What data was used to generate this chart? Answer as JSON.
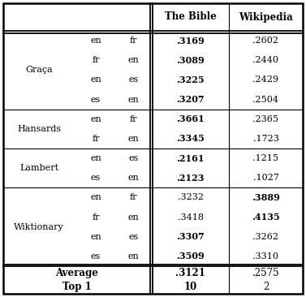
{
  "rows": [
    {
      "group": "Graça",
      "lang1": "en",
      "lang2": "fr",
      "bible": ".3169",
      "wiki": ".2602",
      "bible_bold": true,
      "wiki_bold": false
    },
    {
      "group": "",
      "lang1": "fr",
      "lang2": "en",
      "bible": ".3089",
      "wiki": ".2440",
      "bible_bold": true,
      "wiki_bold": false
    },
    {
      "group": "",
      "lang1": "en",
      "lang2": "es",
      "bible": ".3225",
      "wiki": ".2429",
      "bible_bold": true,
      "wiki_bold": false
    },
    {
      "group": "",
      "lang1": "es",
      "lang2": "en",
      "bible": ".3207",
      "wiki": ".2504",
      "bible_bold": true,
      "wiki_bold": false
    },
    {
      "group": "Hansards",
      "lang1": "en",
      "lang2": "fr",
      "bible": ".3661",
      "wiki": ".2365",
      "bible_bold": true,
      "wiki_bold": false
    },
    {
      "group": "",
      "lang1": "fr",
      "lang2": "en",
      "bible": ".3345",
      "wiki": ".1723",
      "bible_bold": true,
      "wiki_bold": false
    },
    {
      "group": "Lambert",
      "lang1": "en",
      "lang2": "es",
      "bible": ".2161",
      "wiki": ".1215",
      "bible_bold": true,
      "wiki_bold": false
    },
    {
      "group": "",
      "lang1": "es",
      "lang2": "en",
      "bible": ".2123",
      "wiki": ".1027",
      "bible_bold": true,
      "wiki_bold": false
    },
    {
      "group": "Wiktionary",
      "lang1": "en",
      "lang2": "fr",
      "bible": ".3232",
      "wiki": ".3889",
      "bible_bold": false,
      "wiki_bold": true
    },
    {
      "group": "",
      "lang1": "fr",
      "lang2": "en",
      "bible": ".3418",
      "wiki": ".4135",
      "bible_bold": false,
      "wiki_bold": true
    },
    {
      "group": "",
      "lang1": "en",
      "lang2": "es",
      "bible": ".3307",
      "wiki": ".3262",
      "bible_bold": true,
      "wiki_bold": false
    },
    {
      "group": "",
      "lang1": "es",
      "lang2": "en",
      "bible": ".3509",
      "wiki": ".3310",
      "bible_bold": true,
      "wiki_bold": false
    }
  ],
  "group_list": [
    [
      "Graça",
      0,
      3
    ],
    [
      "Hansards",
      4,
      5
    ],
    [
      "Lambert",
      6,
      7
    ],
    [
      "Wiktionary",
      8,
      11
    ]
  ],
  "header_bible": "The Bible",
  "header_wiki": "Wikipedia",
  "footer_left": "Average\nTop 1",
  "footer_bible": ".3121\n10",
  "footer_wiki": ".2575\n2",
  "bg_color": "#ffffff",
  "fontsize_data": 8.0,
  "fontsize_header": 8.5
}
